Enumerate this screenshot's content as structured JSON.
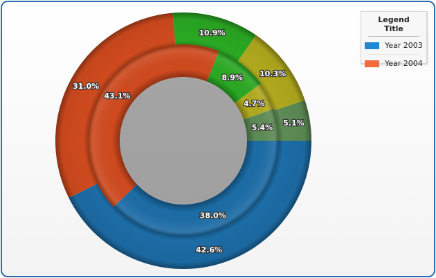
{
  "chart_data": {
    "type": "pie",
    "subtype": "doughnut",
    "legend": {
      "title": "Legend Title",
      "placement": "top-right",
      "items": [
        {
          "label": "Year 2003",
          "color": "#1f88d2"
        },
        {
          "label": "Year 2004",
          "color": "#f26b3c"
        }
      ]
    },
    "slice_colors": [
      "#1c6ca6",
      "#cf4a1e",
      "#2aa823",
      "#b0a91e",
      "#5d8b55"
    ],
    "series": [
      {
        "name": "Year 2003",
        "ring": "outer",
        "values": [
          42.6,
          31.0,
          10.9,
          10.3,
          5.1
        ],
        "labels": [
          "42.6%",
          "31.0%",
          "10.9%",
          "10.3%",
          "5.1%"
        ]
      },
      {
        "name": "Year 2004",
        "ring": "inner",
        "values": [
          38.0,
          43.1,
          8.9,
          4.7,
          5.4
        ],
        "labels": [
          "38.0%",
          "43.1%",
          "8.9%",
          "4.7%",
          "5.4%"
        ]
      }
    ]
  }
}
